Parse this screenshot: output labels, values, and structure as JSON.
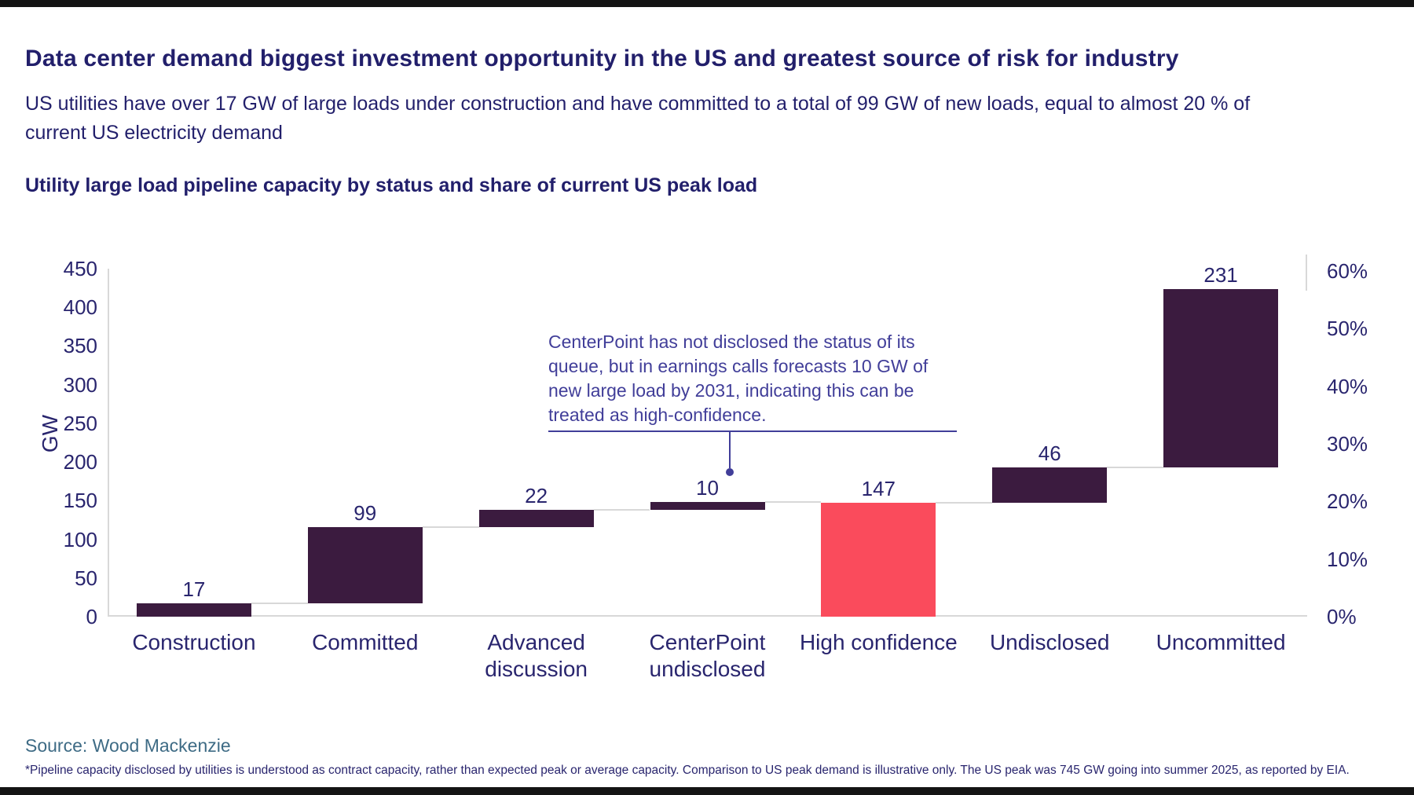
{
  "page": {
    "title": "Data center demand biggest investment opportunity in the US and greatest source of risk for industry",
    "subtitle_line1": "US utilities have over 17 GW of large loads under construction and have committed to a total of 99 GW of new loads, equal to almost 20 % of",
    "subtitle_line2": "current US electricity demand",
    "chart_heading": "Utility large load pipeline capacity by status and share of current US peak load",
    "source": "Source: Wood Mackenzie",
    "footnote": "*Pipeline capacity disclosed by utilities is understood as contract capacity, rather than expected peak or average capacity. Comparison to US peak demand is illustrative only. The US peak was 745 GW going into summer 2025, as reported by EIA."
  },
  "chart_data": {
    "type": "bar",
    "subtype": "waterfall",
    "title": "Utility large load pipeline capacity by status and share of current US peak load",
    "ylabel": "GW",
    "ylim": [
      0,
      450
    ],
    "y_ticks": [
      0,
      50,
      100,
      150,
      200,
      250,
      300,
      350,
      400,
      450
    ],
    "right_axis": {
      "ticks_pct": [
        0,
        10,
        20,
        30,
        40,
        50,
        60
      ],
      "us_peak_gw": 745
    },
    "grid": false,
    "legend": "none",
    "categories": [
      "Construction",
      "Committed",
      "Advanced discussion",
      "CenterPoint undisclosed",
      "High confidence",
      "Undisclosed",
      "Uncommitted"
    ],
    "bars": [
      {
        "label": "Construction",
        "value": 17,
        "kind": "step"
      },
      {
        "label": "Committed",
        "value": 99,
        "kind": "step"
      },
      {
        "label": "Advanced\ndiscussion",
        "value": 22,
        "kind": "step"
      },
      {
        "label": "CenterPoint\nundisclosed",
        "value": 10,
        "kind": "step"
      },
      {
        "label": "High confidence",
        "value": 147,
        "kind": "subtotal"
      },
      {
        "label": "Undisclosed",
        "value": 46,
        "kind": "step"
      },
      {
        "label": "Uncommitted",
        "value": 231,
        "kind": "step"
      }
    ],
    "colors": {
      "step_bar": "#3B1B3F",
      "subtotal_bar": "#FA4B5C",
      "connector": "#D8D8D8",
      "annotation": "#413E99",
      "label_text": "#29256E"
    },
    "annotation": {
      "text": "CenterPoint has not disclosed the status of its\nqueue, but in earnings calls forecasts 10 GW of\nnew large load by 2031, indicating this can be\ntreated as high-confidence.",
      "target": "CenterPoint undisclosed"
    }
  }
}
